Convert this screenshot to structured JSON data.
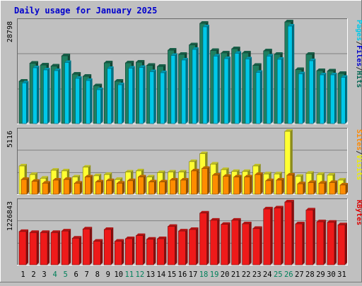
{
  "chart_data": {
    "type": "bar",
    "title": "Daily usage for January 2025",
    "categories": [
      "1",
      "2",
      "3",
      "4",
      "5",
      "6",
      "7",
      "8",
      "9",
      "10",
      "11",
      "12",
      "13",
      "14",
      "15",
      "16",
      "17",
      "18",
      "19",
      "20",
      "21",
      "22",
      "23",
      "24",
      "25",
      "26",
      "27",
      "28",
      "29",
      "30",
      "31"
    ],
    "weekend_days": [
      "4",
      "5",
      "11",
      "12",
      "18",
      "19",
      "25",
      "26"
    ],
    "panels": [
      {
        "id": "hits-panel",
        "ymax_label": "28798",
        "ymax": 28798,
        "legend": [
          "Pages",
          "/",
          "Files",
          "/",
          "Hits"
        ],
        "legend_colors": [
          "#00c8e8",
          "#303030",
          "#0000cc",
          "#303030",
          "#006450"
        ],
        "series": [
          {
            "name": "Hits",
            "color": "#1f7f60",
            "values": [
              12000,
              17100,
              16600,
              16300,
              19200,
              14000,
              13400,
              10700,
              17200,
              12000,
              17200,
              17400,
              16500,
              16200,
              20800,
              19600,
              22300,
              28400,
              20700,
              20000,
              21200,
              20000,
              16500,
              20600,
              19600,
              28800,
              15300,
              19600,
              15000,
              14900,
              14200
            ]
          },
          {
            "name": "Files",
            "color": "#0000cc",
            "values": [
              10800,
              14200,
              14500,
              14800,
              15500,
              11000,
              11800,
              8500,
              12500,
              9500,
              14200,
              15000,
              14000,
              12500,
              17500,
              15500,
              18800,
              21000,
              18200,
              17800,
              18800,
              16500,
              14500,
              17200,
              17000,
              24500,
              13200,
              16800,
              13000,
              12800,
              12500
            ]
          },
          {
            "name": "Pages",
            "color": "#00c8e8",
            "values": [
              11500,
              15800,
              15200,
              15000,
              17300,
              12800,
              12200,
              9600,
              15600,
              11000,
              15700,
              15900,
              14700,
              14400,
              19300,
              18000,
              21000,
              27400,
              19100,
              18400,
              19900,
              18300,
              14500,
              19100,
              18200,
              27600,
              14100,
              17800,
              13800,
              13800,
              13100
            ]
          }
        ]
      },
      {
        "id": "visits-panel",
        "ymax_label": "5116",
        "ymax": 5116,
        "legend": [
          "Sites",
          "/",
          "Visits"
        ],
        "legend_colors": [
          "#ff8800",
          "#303030",
          "#eeee00"
        ],
        "series": [
          {
            "name": "Visits",
            "color": "#ffff33",
            "values": [
              2300,
              1600,
              1300,
              1950,
              1900,
              1400,
              2200,
              1500,
              1600,
              1200,
              1800,
              1900,
              1400,
              1750,
              1800,
              1800,
              2650,
              3300,
              2450,
              2000,
              1850,
              1850,
              2300,
              1650,
              1650,
              5116,
              1450,
              1700,
              1600,
              1550,
              1150
            ]
          },
          {
            "name": "Sites",
            "color": "#ff8c00",
            "values": [
              1200,
              1050,
              900,
              1150,
              1200,
              900,
              1400,
              1000,
              1100,
              900,
              1100,
              1400,
              1000,
              1000,
              1150,
              1150,
              1900,
              2100,
              1550,
              1450,
              1400,
              1400,
              1600,
              1100,
              1150,
              1550,
              850,
              950,
              900,
              950,
              750
            ]
          }
        ]
      },
      {
        "id": "kbytes-panel",
        "ymax_label": "1226843",
        "ymax": 1226843,
        "legend": [
          "KBytes"
        ],
        "legend_colors": [
          "#dd0000"
        ],
        "series": [
          {
            "name": "KBytes",
            "color": "#ee1a1a",
            "values": [
              650000,
              630000,
              630000,
              630000,
              660000,
              520000,
              700000,
              460000,
              690000,
              460000,
              510000,
              570000,
              500000,
              510000,
              750000,
              660000,
              690000,
              1010000,
              870000,
              790000,
              870000,
              800000,
              710000,
              1090000,
              1110000,
              1226843,
              800000,
              1070000,
              840000,
              830000,
              780000
            ]
          }
        ]
      }
    ]
  }
}
